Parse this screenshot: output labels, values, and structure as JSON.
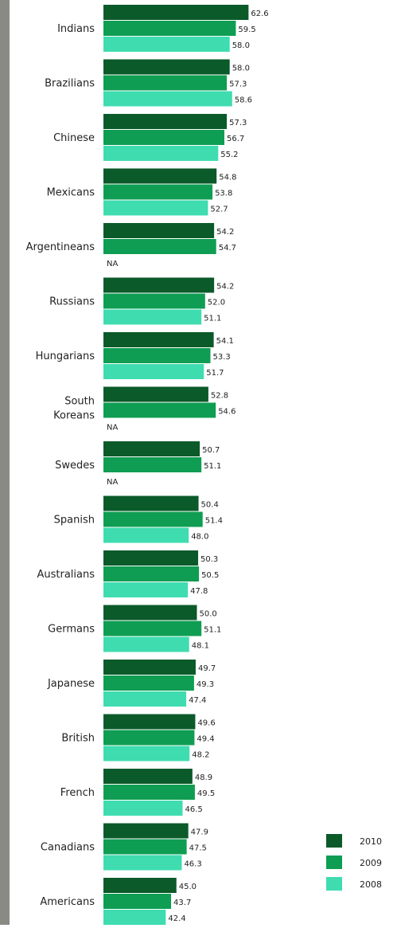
{
  "chart_data": {
    "type": "bar",
    "orientation": "horizontal",
    "categories": [
      "Indians",
      "Brazilians",
      "Chinese",
      "Mexicans",
      "Argentineans",
      "Russians",
      "Hungarians",
      "South Koreans",
      "Swedes",
      "Spanish",
      "Australians",
      "Germans",
      "Japanese",
      "British",
      "French",
      "Canadians",
      "Americans"
    ],
    "series": [
      {
        "name": "2010",
        "color": "#0b5a2a",
        "values": [
          62.6,
          58.0,
          57.3,
          54.8,
          54.2,
          54.2,
          54.1,
          52.8,
          50.7,
          50.4,
          50.3,
          50.0,
          49.7,
          49.6,
          48.9,
          47.9,
          45.0
        ]
      },
      {
        "name": "2009",
        "color": "#0e9d52",
        "values": [
          59.5,
          57.3,
          56.7,
          53.8,
          54.7,
          52.0,
          53.3,
          54.6,
          51.1,
          51.4,
          50.5,
          51.1,
          49.3,
          49.4,
          49.5,
          47.5,
          43.7
        ]
      },
      {
        "name": "2008",
        "color": "#3fdcb0",
        "values": [
          58.0,
          58.6,
          55.2,
          52.7,
          null,
          51.1,
          51.7,
          null,
          null,
          48.0,
          47.8,
          48.1,
          47.4,
          48.2,
          46.5,
          46.3,
          42.4
        ]
      }
    ],
    "missing_label": "NA",
    "legend": "bottom-right",
    "grid": false,
    "title": "",
    "xlabel": "",
    "ylabel": ""
  }
}
